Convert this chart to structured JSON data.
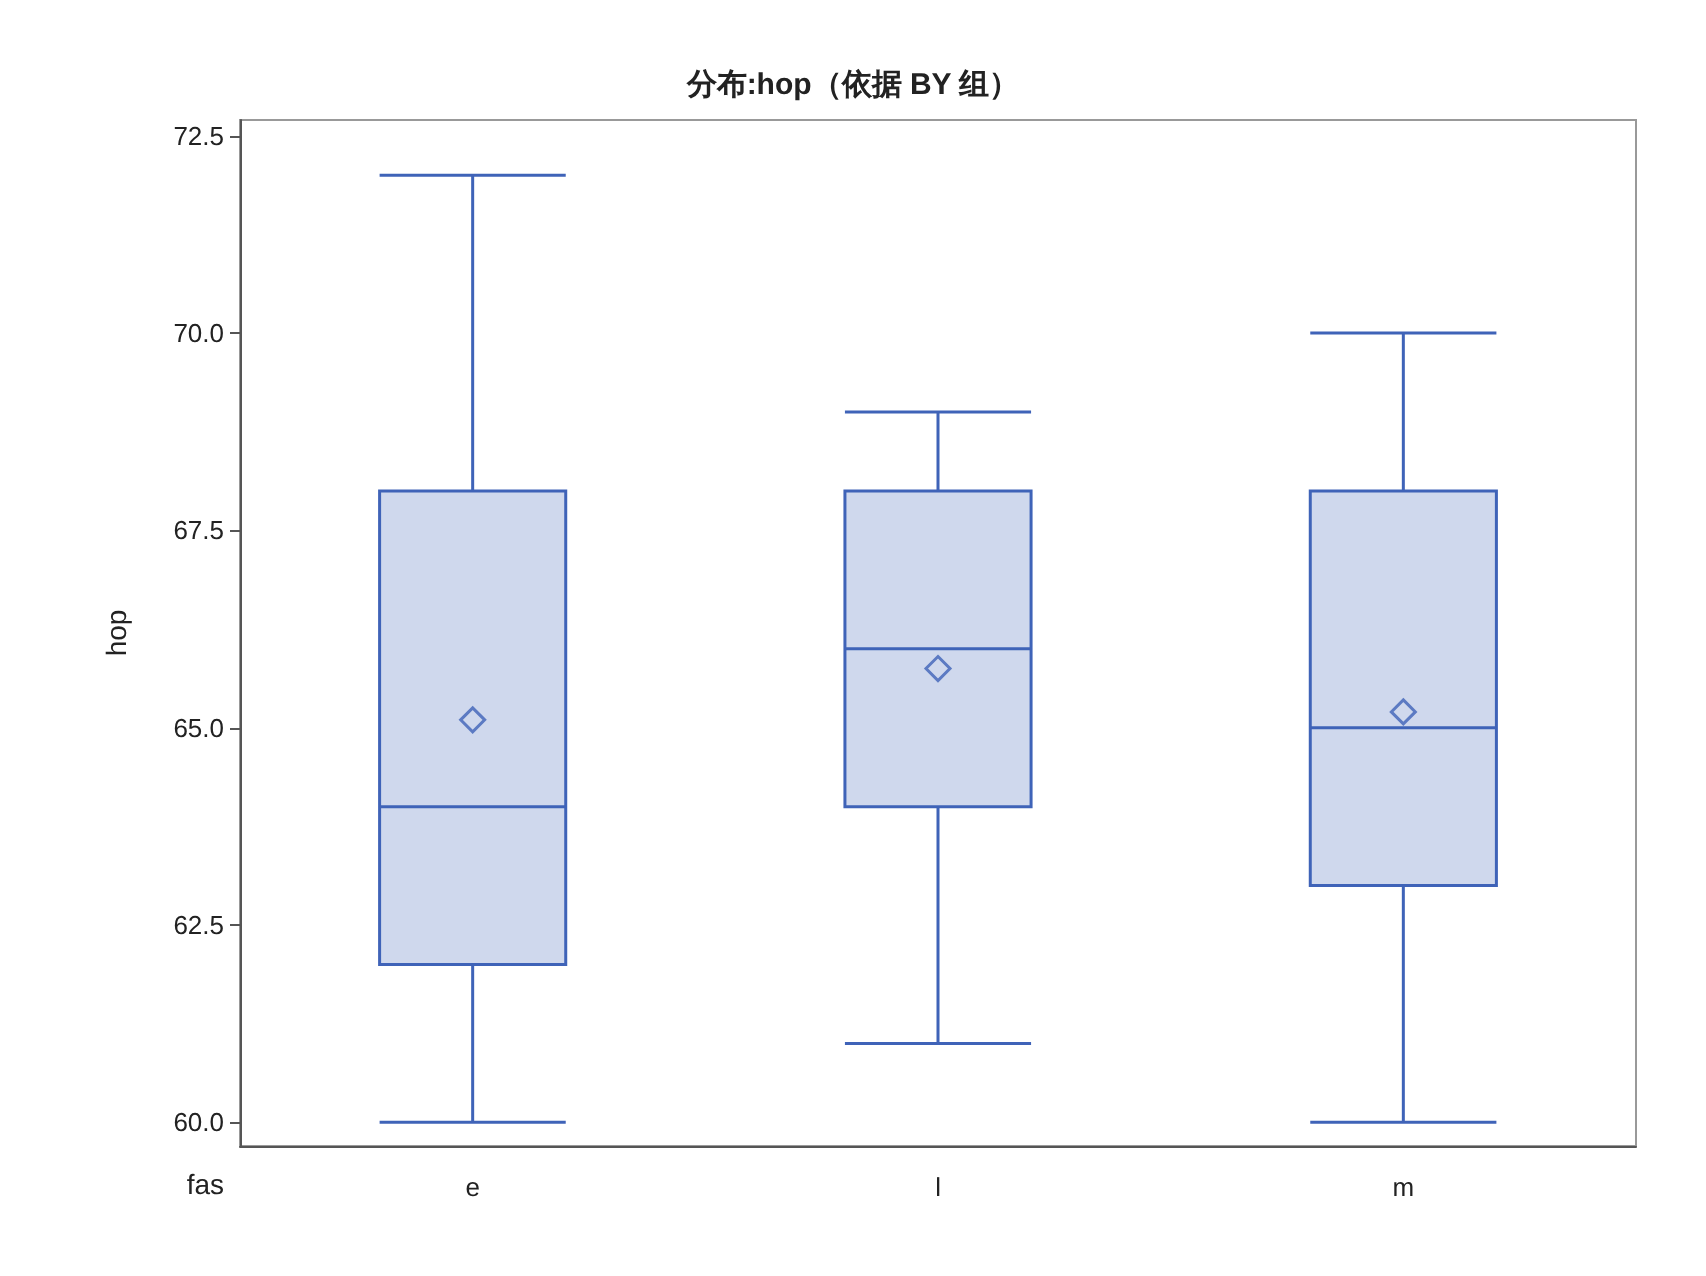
{
  "chart_data": {
    "type": "box",
    "title": "分布:hop（依据 BY 组）",
    "xlabel": "fas",
    "ylabel": "hop",
    "categories": [
      "e",
      "l",
      "m"
    ],
    "series": [
      {
        "color": "#3f63b8",
        "boxes": [
          {
            "low": 60,
            "q1": 62,
            "median": 64,
            "q3": 68,
            "high": 72,
            "mean": 65.1
          },
          {
            "low": 61,
            "q1": 64,
            "median": 66,
            "q3": 68,
            "high": 69,
            "mean": 65.75
          },
          {
            "low": 60,
            "q1": 63,
            "median": 65,
            "q3": 68,
            "high": 70,
            "mean": 65.2
          }
        ]
      }
    ],
    "ylim": [
      59.7,
      72.7
    ],
    "yticks": [
      {
        "value": 60,
        "label": "60.0"
      },
      {
        "value": 62.5,
        "label": "62.5"
      },
      {
        "value": 65,
        "label": "65.0"
      },
      {
        "value": 67.5,
        "label": "67.5"
      },
      {
        "value": 70,
        "label": "70.0"
      },
      {
        "value": 72.5,
        "label": "72.5"
      }
    ],
    "grid": false,
    "marker": "diamond"
  }
}
